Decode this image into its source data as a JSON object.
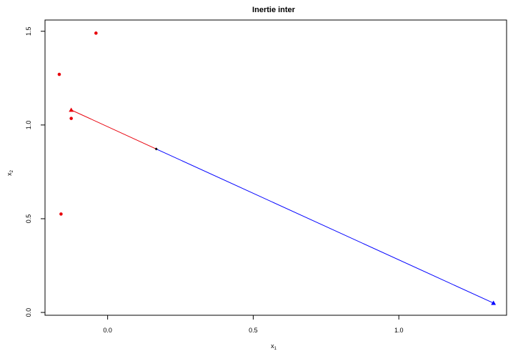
{
  "chart_data": {
    "type": "scatter",
    "title": "Inertie inter",
    "xlabel": {
      "main": "x",
      "sub": "1"
    },
    "ylabel": {
      "main": "x",
      "sub": "2"
    },
    "xlim": [
      -0.215,
      1.37
    ],
    "ylim": [
      -0.015,
      1.56
    ],
    "xticks": [
      0.0,
      0.5,
      1.0
    ],
    "xtick_labels": [
      "0.0",
      "0.5",
      "1.0"
    ],
    "yticks": [
      0.0,
      0.5,
      1.0,
      1.5
    ],
    "ytick_labels": [
      "0.0",
      "0.5",
      "1.0",
      "1.5"
    ],
    "grid": false,
    "series": [
      {
        "color": "#e8000b",
        "marker": "circle",
        "points": [
          {
            "x": -0.166,
            "y": 1.27
          },
          {
            "x": -0.04,
            "y": 1.49
          },
          {
            "x": -0.125,
            "y": 1.035
          },
          {
            "x": -0.16,
            "y": 0.525
          }
        ]
      },
      {
        "color": "#e8000b",
        "marker": "triangle",
        "points": [
          {
            "x": -0.125,
            "y": 1.08
          }
        ]
      },
      {
        "color": "#0000ff",
        "marker": "triangle",
        "points": [
          {
            "x": 1.325,
            "y": 0.05
          }
        ]
      },
      {
        "color": "#000000",
        "marker": "diamond",
        "points": [
          {
            "x": 0.167,
            "y": 0.872
          }
        ]
      }
    ],
    "segments": [
      {
        "color": "#e8000b",
        "from": {
          "x": -0.125,
          "y": 1.08
        },
        "to": {
          "x": 0.167,
          "y": 0.872
        }
      },
      {
        "color": "#0000ff",
        "from": {
          "x": 0.167,
          "y": 0.872
        },
        "to": {
          "x": 1.325,
          "y": 0.05
        }
      }
    ]
  }
}
